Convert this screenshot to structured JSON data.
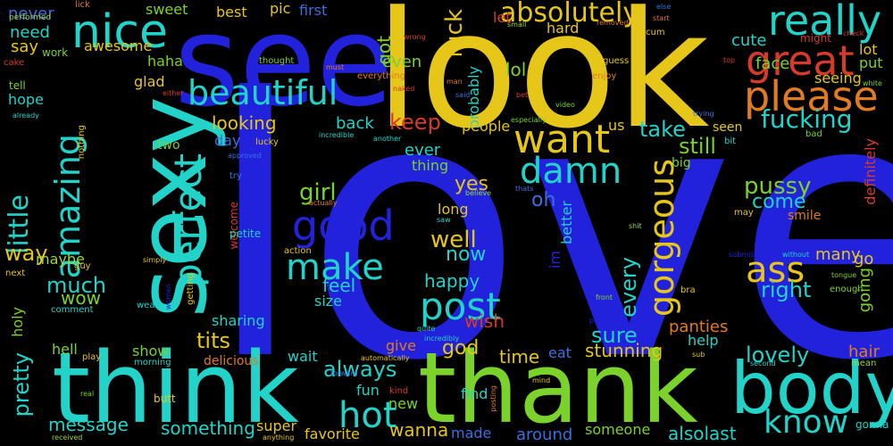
{
  "words": [
    "love",
    "look",
    "see",
    "think",
    "thank",
    "sexy",
    "body",
    "great",
    "beautiful",
    "please",
    "nice",
    "really",
    "good",
    "make",
    "post",
    "amazing",
    "perfect",
    "want",
    "damn",
    "gorgeous",
    "ass",
    "know",
    "hot",
    "absolutely",
    "little",
    "fucking",
    "girl",
    "pussy",
    "well",
    "lovely",
    "right",
    "tits",
    "much",
    "fuck",
    "sure",
    "way",
    "keep",
    "take",
    "still",
    "come",
    "now",
    "feel",
    "happy",
    "wish",
    "stunning",
    "god",
    "always",
    "every",
    "pretty",
    "message",
    "something",
    "wanna",
    "favorite",
    "alsolast",
    "around",
    "made",
    "someone",
    "find",
    "new",
    "fun",
    "super",
    "wait",
    "eat",
    "time",
    "panties",
    "help",
    "hair",
    "go",
    "going",
    "definitely",
    "smile",
    "many",
    "face",
    "cute",
    "lot",
    "put",
    "hard",
    "let",
    "seeing",
    "probably",
    "lol",
    "got",
    "even",
    "sweet",
    "best",
    "pic",
    "first",
    "never",
    "need",
    "say",
    "awesome",
    "haha",
    "glad",
    "hope",
    "tell",
    "work",
    "cake",
    "lick",
    "performed",
    "wrong",
    "removed",
    "small",
    "start",
    "cum",
    "might",
    "check",
    "top",
    "white",
    "guess",
    "enjoy",
    "man",
    "said",
    "naked",
    "must",
    "everything",
    "thought",
    "either",
    "bet",
    "video",
    "picture",
    "already",
    "especially",
    "trying",
    "bad",
    "seen",
    "bit",
    "us",
    "ever",
    "thing",
    "looking",
    "day",
    "back",
    "people",
    "lucky",
    "approved",
    "two",
    "nothing",
    "incredible",
    "another",
    "oh",
    "yes",
    "long",
    "better",
    "big",
    "actually",
    "believe",
    "thats",
    "try",
    "welcome",
    "saw",
    "shit",
    "else",
    "may",
    "maybe",
    "holy",
    "wow",
    "comment",
    "next",
    "guy",
    "simply",
    "women",
    "getting",
    "petite",
    "action",
    "size",
    "sharing",
    "show",
    "delicious",
    "hell",
    "morning",
    "wear",
    "play",
    "real",
    "butt",
    "received",
    "anything",
    "automatically",
    "incredibly",
    "quite",
    "kind",
    "forward",
    "posting",
    "mind",
    "front",
    "perfection",
    "bra",
    "sub",
    "second",
    "mean",
    "tongue",
    "enough",
    "without",
    "submission",
    "gonna",
    "give",
    "im"
  ],
  "colors": {
    "background": "#000000",
    "blue": "#2222dd",
    "yellow": "#e6c619",
    "green": "#7ad22b",
    "cyan": "#21d3c8",
    "orange": "#e07b22",
    "red": "#d63a2a"
  }
}
